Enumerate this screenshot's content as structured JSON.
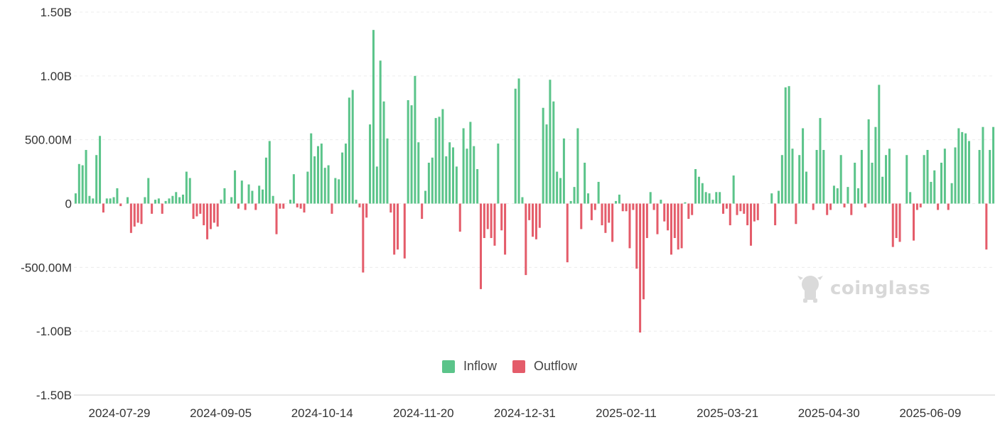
{
  "chart_data": {
    "type": "bar",
    "ylim": [
      -1500000000,
      1500000000
    ],
    "y_ticks": [
      {
        "value": 1500000000,
        "label": "1.50B"
      },
      {
        "value": 1000000000,
        "label": "1.00B"
      },
      {
        "value": 500000000,
        "label": "500.00M"
      },
      {
        "value": 0,
        "label": "0"
      },
      {
        "value": -500000000,
        "label": "-500.00M"
      },
      {
        "value": -1000000000,
        "label": "-1.00B"
      },
      {
        "value": -1500000000,
        "label": "-1.50B"
      }
    ],
    "x_tick_labels": [
      "2024-07-29",
      "2024-09-05",
      "2024-10-14",
      "2024-11-20",
      "2024-12-31",
      "2025-02-11",
      "2025-03-21",
      "2025-04-30",
      "2025-06-09"
    ],
    "grid": true,
    "legend_position": "bottom-center",
    "series": [
      {
        "name": "Inflow",
        "color": "#5bc48a"
      },
      {
        "name": "Outflow",
        "color": "#e45c6a"
      }
    ],
    "values_millions": [
      80,
      310,
      300,
      420,
      60,
      40,
      380,
      530,
      -70,
      40,
      40,
      50,
      120,
      -20,
      0,
      50,
      -230,
      -180,
      -150,
      -160,
      50,
      200,
      -80,
      30,
      40,
      -80,
      20,
      40,
      60,
      90,
      50,
      70,
      250,
      200,
      -120,
      -100,
      -80,
      -170,
      -280,
      -200,
      -150,
      -180,
      30,
      120,
      0,
      50,
      260,
      -40,
      180,
      -50,
      150,
      100,
      -50,
      140,
      110,
      360,
      490,
      60,
      -240,
      -40,
      -40,
      0,
      30,
      230,
      -30,
      -40,
      -70,
      250,
      550,
      370,
      450,
      470,
      280,
      300,
      -80,
      200,
      190,
      400,
      470,
      830,
      890,
      30,
      -30,
      -540,
      -110,
      620,
      1360,
      290,
      1120,
      800,
      510,
      -70,
      -400,
      -360,
      0,
      -430,
      810,
      770,
      1000,
      480,
      -120,
      100,
      320,
      360,
      670,
      680,
      740,
      370,
      480,
      440,
      290,
      -220,
      590,
      430,
      640,
      450,
      270,
      -670,
      -270,
      -200,
      -270,
      -330,
      470,
      -210,
      -400,
      0,
      0,
      900,
      980,
      50,
      -560,
      -130,
      -260,
      -280,
      -190,
      750,
      620,
      970,
      800,
      250,
      200,
      510,
      -460,
      20,
      130,
      590,
      -200,
      320,
      80,
      -130,
      -50,
      170,
      -170,
      -230,
      -150,
      -300,
      20,
      70,
      -60,
      -60,
      -350,
      -50,
      -510,
      -1010,
      -750,
      -270,
      90,
      -50,
      -240,
      30,
      -140,
      -210,
      -400,
      -270,
      -360,
      -350,
      10,
      -120,
      -90,
      270,
      210,
      160,
      90,
      80,
      30,
      90,
      90,
      -80,
      -40,
      -170,
      220,
      -90,
      -60,
      -80,
      -170,
      -330,
      -140,
      -130,
      0,
      0,
      0,
      80,
      -170,
      100,
      380,
      910,
      920,
      430,
      -160,
      380,
      590,
      250,
      0,
      -50,
      420,
      670,
      420,
      -90,
      -50,
      140,
      120,
      380,
      -30,
      130,
      -90,
      320,
      120,
      420,
      -30,
      660,
      320,
      600,
      930,
      210,
      380,
      430,
      -340,
      -270,
      -300,
      0,
      380,
      90,
      -290,
      -50,
      -30,
      380,
      420,
      170,
      260,
      -50,
      320,
      430,
      -50,
      160,
      440,
      590,
      560,
      550,
      490,
      0,
      0,
      420,
      600,
      -360,
      420,
      600
    ]
  },
  "watermark": {
    "text": "coinglass"
  }
}
